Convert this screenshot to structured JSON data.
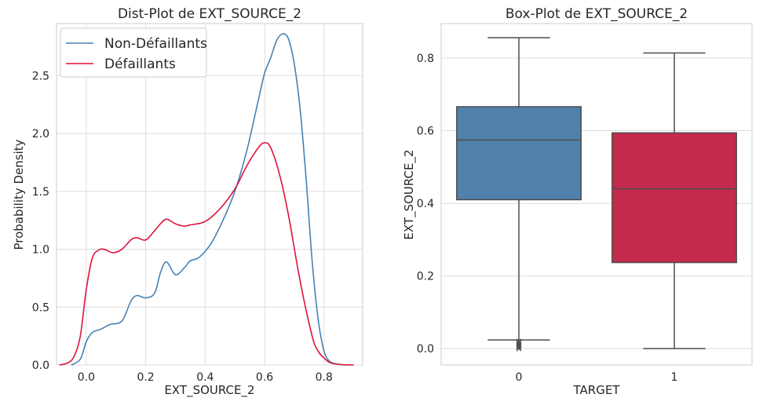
{
  "chart_data": [
    {
      "type": "line",
      "title": "Dist-Plot de EXT_SOURCE_2",
      "xlabel": "EXT_SOURCE_2",
      "ylabel": "Probability Density",
      "xlim": [
        -0.1,
        0.93
      ],
      "ylim": [
        0,
        2.95
      ],
      "xticks": [
        0.0,
        0.2,
        0.4,
        0.6,
        0.8
      ],
      "yticks": [
        0.0,
        0.5,
        1.0,
        1.5,
        2.0,
        2.5
      ],
      "xtick_labels": [
        "0.0",
        "0.2",
        "0.4",
        "0.6",
        "0.8"
      ],
      "ytick_labels": [
        "0.0",
        "0.5",
        "1.0",
        "1.5",
        "2.0",
        "2.5"
      ],
      "grid": true,
      "legend_position": "top-left",
      "series": [
        {
          "name": "Non-Défaillants",
          "color": "#4682B4",
          "x": [
            -0.05,
            -0.02,
            0.0,
            0.02,
            0.05,
            0.08,
            0.12,
            0.15,
            0.17,
            0.2,
            0.23,
            0.25,
            0.27,
            0.3,
            0.33,
            0.35,
            0.38,
            0.42,
            0.46,
            0.5,
            0.54,
            0.58,
            0.6,
            0.62,
            0.64,
            0.66,
            0.68,
            0.7,
            0.72,
            0.74,
            0.76,
            0.78,
            0.8,
            0.82,
            0.85,
            0.88
          ],
          "y": [
            0.0,
            0.05,
            0.2,
            0.28,
            0.31,
            0.35,
            0.38,
            0.55,
            0.6,
            0.58,
            0.62,
            0.8,
            0.89,
            0.78,
            0.84,
            0.9,
            0.93,
            1.05,
            1.25,
            1.5,
            1.85,
            2.3,
            2.52,
            2.65,
            2.8,
            2.86,
            2.82,
            2.6,
            2.2,
            1.6,
            0.9,
            0.4,
            0.12,
            0.03,
            0.005,
            0.0
          ]
        },
        {
          "name": "Défaillants",
          "color": "#DC143C",
          "x": [
            -0.09,
            -0.06,
            -0.04,
            -0.02,
            0.0,
            0.02,
            0.04,
            0.06,
            0.09,
            0.12,
            0.15,
            0.17,
            0.2,
            0.23,
            0.25,
            0.27,
            0.3,
            0.33,
            0.35,
            0.4,
            0.45,
            0.5,
            0.54,
            0.58,
            0.6,
            0.62,
            0.65,
            0.68,
            0.72,
            0.76,
            0.78,
            0.8,
            0.82,
            0.85,
            0.9
          ],
          "y": [
            0.0,
            0.02,
            0.08,
            0.25,
            0.65,
            0.92,
            0.99,
            1.0,
            0.97,
            1.0,
            1.08,
            1.1,
            1.08,
            1.16,
            1.22,
            1.26,
            1.22,
            1.2,
            1.21,
            1.24,
            1.35,
            1.52,
            1.72,
            1.88,
            1.92,
            1.88,
            1.65,
            1.3,
            0.72,
            0.25,
            0.12,
            0.06,
            0.02,
            0.005,
            0.0
          ]
        }
      ]
    },
    {
      "type": "box",
      "title": "Box-Plot de EXT_SOURCE_2",
      "xlabel": "TARGET",
      "ylabel": "EXT_SOURCE_2",
      "ylim": [
        -0.045,
        0.895
      ],
      "yticks": [
        0.0,
        0.2,
        0.4,
        0.6,
        0.8
      ],
      "ytick_labels": [
        "0.0",
        "0.2",
        "0.4",
        "0.6",
        "0.8"
      ],
      "grid": true,
      "categories": [
        "0",
        "1"
      ],
      "boxes": [
        {
          "category": "0",
          "color": "#4F81AA",
          "whisker_low": 0.024,
          "q1": 0.41,
          "median": 0.574,
          "q3": 0.666,
          "whisker_high": 0.856,
          "outliers": [
            0.0,
            0.004,
            0.008,
            0.012,
            0.016,
            0.02
          ]
        },
        {
          "category": "1",
          "color": "#C42A4C",
          "whisker_low": 0.0,
          "q1": 0.237,
          "median": 0.44,
          "q3": 0.594,
          "whisker_high": 0.814,
          "outliers": []
        }
      ]
    }
  ]
}
